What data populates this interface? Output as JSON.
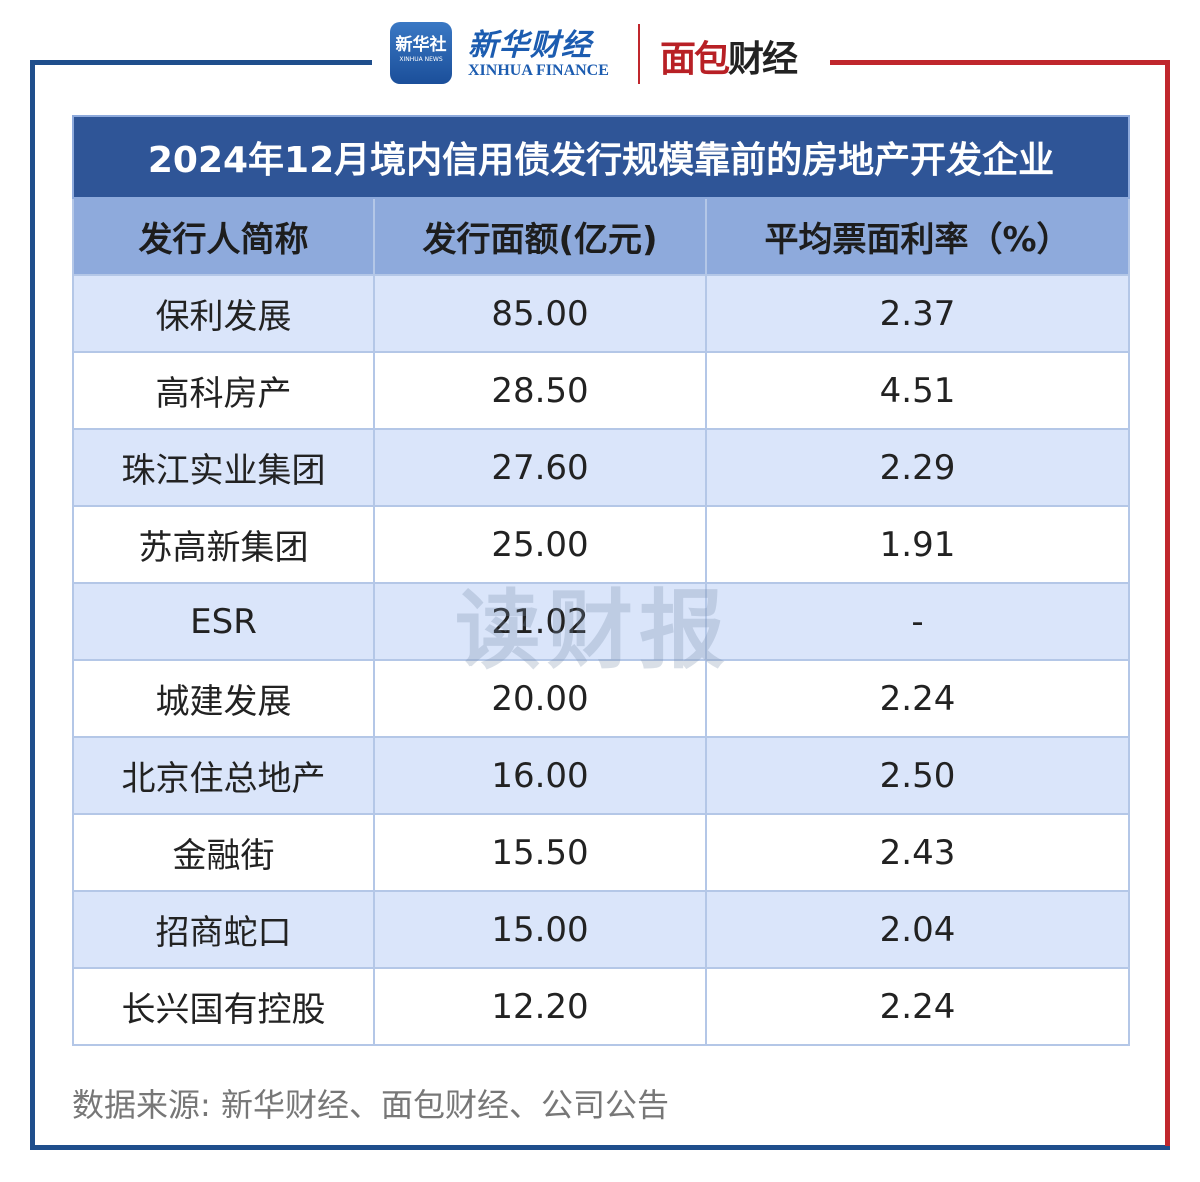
{
  "logos": {
    "xinhua_app": "新华社",
    "xinhua_app_sub": "XINHUA NEWS",
    "xinhua_finance": "新华财经",
    "xinhua_finance_en": "XINHUA FINANCE",
    "mianbao": "面包",
    "mianbao_b": "财经"
  },
  "colors": {
    "title_bg": "#2f5597",
    "header_bg": "#8eaadc",
    "row_alt": "#dae5fa",
    "frame_blue": "#1f4e8c",
    "frame_red": "#c0272d"
  },
  "watermark": "读财报",
  "chart_data": {
    "type": "table",
    "title": "2024年12月境内信用债发行规模靠前的房地产开发企业",
    "columns": [
      "发行人简称",
      "发行面额(亿元)",
      "平均票面利率（%）"
    ],
    "rows": [
      [
        "保利发展",
        "85.00",
        "2.37"
      ],
      [
        "高科房产",
        "28.50",
        "4.51"
      ],
      [
        "珠江实业集团",
        "27.60",
        "2.29"
      ],
      [
        "苏高新集团",
        "25.00",
        "1.91"
      ],
      [
        "ESR",
        "21.02",
        "-"
      ],
      [
        "城建发展",
        "20.00",
        "2.24"
      ],
      [
        "北京住总地产",
        "16.00",
        "2.50"
      ],
      [
        "金融街",
        "15.50",
        "2.43"
      ],
      [
        "招商蛇口",
        "15.00",
        "2.04"
      ],
      [
        "长兴国有控股",
        "12.20",
        "2.24"
      ]
    ]
  },
  "source": "数据来源: 新华财经、面包财经、公司公告"
}
